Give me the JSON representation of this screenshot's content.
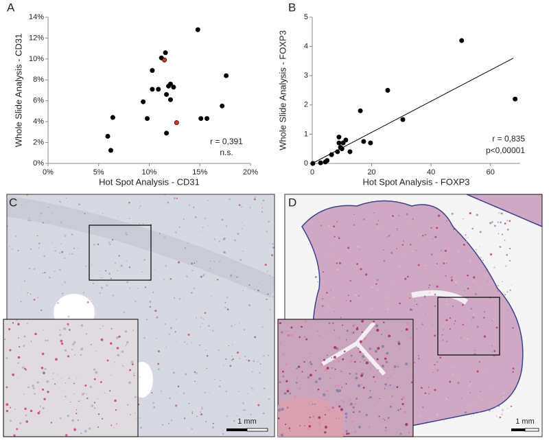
{
  "chart_data": [
    {
      "type": "scatter",
      "label": "A",
      "xlabel": "Hot Spot Analysis - CD31",
      "ylabel": "Whole Slide Analysis - CD31",
      "xlim": [
        0,
        20
      ],
      "ylim": [
        0,
        14
      ],
      "xticks": [
        {
          "value": 0,
          "label": "0%"
        },
        {
          "value": 5,
          "label": "5%"
        },
        {
          "value": 10,
          "label": "10%"
        },
        {
          "value": 15,
          "label": "15%"
        },
        {
          "value": 20,
          "label": "20%"
        }
      ],
      "yticks": [
        {
          "value": 0,
          "label": "0%"
        },
        {
          "value": 2,
          "label": "2%"
        },
        {
          "value": 4,
          "label": "4%"
        },
        {
          "value": 6,
          "label": "6%"
        },
        {
          "value": 8,
          "label": "8%"
        },
        {
          "value": 10,
          "label": "10%"
        },
        {
          "value": 12,
          "label": "12%"
        },
        {
          "value": 14,
          "label": "14%"
        }
      ],
      "series": [
        {
          "color": "#000000",
          "x": [
            5.9,
            6.2,
            6.4,
            9.4,
            9.8,
            10.3,
            10.3,
            10.9,
            11.2,
            11.6,
            11.7,
            11.7,
            11.9,
            12.1,
            12.1,
            12.4,
            14.8,
            15.1,
            15.7,
            17.2,
            17.6
          ],
          "values": [
            2.6,
            1.25,
            4.4,
            5.9,
            4.3,
            8.9,
            7.1,
            7.1,
            10.1,
            10.6,
            6.6,
            2.9,
            7.4,
            7.6,
            6.1,
            7.3,
            12.8,
            4.3,
            4.3,
            5.5,
            8.4
          ]
        },
        {
          "color": "#c0392b",
          "x": [
            11.5,
            12.7
          ],
          "values": [
            9.9,
            3.9
          ]
        }
      ],
      "annotations": [
        "r = 0,391",
        "n.s."
      ]
    },
    {
      "type": "scatter",
      "label": "B",
      "xlabel": "Hot Spot Analysis - FOXP3",
      "ylabel": "Whole Slide Analysis - FOXP3",
      "xlim": [
        0,
        70
      ],
      "ylim": [
        0,
        5
      ],
      "xticks": [
        0,
        20,
        40,
        60
      ],
      "yticks": [
        0,
        1,
        2,
        3,
        4,
        5
      ],
      "series": [
        {
          "color": "#000000",
          "x": [
            0.2,
            2.8,
            4.4,
            5,
            6.5,
            8.5,
            9,
            9,
            9.5,
            10,
            10.4,
            11.3,
            12.7,
            16.2,
            17.3,
            19.6,
            25.4,
            30.5,
            50.3,
            68.3
          ],
          "values": [
            0,
            0.02,
            0.05,
            0.1,
            0.3,
            0.4,
            0.9,
            0.7,
            0.55,
            0.5,
            0.7,
            0.8,
            0.4,
            1.8,
            0.75,
            0.7,
            2.5,
            1.5,
            4.2,
            2.2
          ]
        }
      ],
      "trendline": {
        "x": [
          0,
          67.7
        ],
        "values": [
          0,
          3.6
        ]
      },
      "annotations": [
        "r = 0,835",
        "p<0,00001"
      ]
    }
  ],
  "images": [
    {
      "label": "C",
      "scale_bar": "1 mm"
    },
    {
      "label": "D",
      "scale_bar": "1 mm"
    }
  ]
}
